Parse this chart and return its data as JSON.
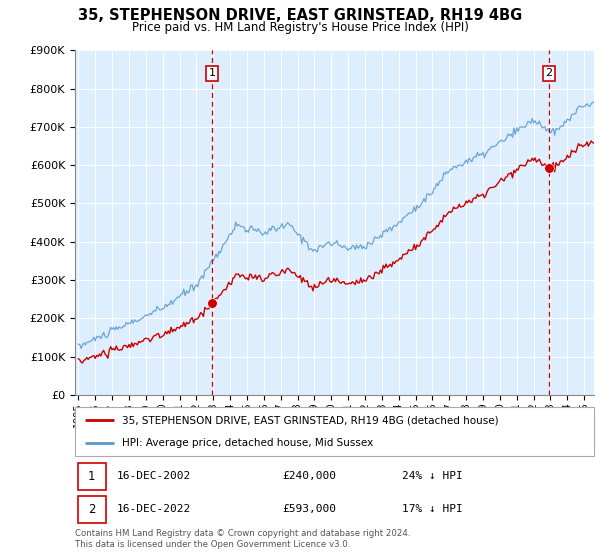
{
  "title": "35, STEPHENSON DRIVE, EAST GRINSTEAD, RH19 4BG",
  "subtitle": "Price paid vs. HM Land Registry's House Price Index (HPI)",
  "ylim": [
    0,
    900000
  ],
  "yticks": [
    0,
    100000,
    200000,
    300000,
    400000,
    500000,
    600000,
    700000,
    800000,
    900000
  ],
  "sale1_t": 2002.958,
  "sale2_t": 2022.958,
  "sale1_p": 240000,
  "sale2_p": 593000,
  "legend_house": "35, STEPHENSON DRIVE, EAST GRINSTEAD, RH19 4BG (detached house)",
  "legend_hpi": "HPI: Average price, detached house, Mid Sussex",
  "footnote": "Contains HM Land Registry data © Crown copyright and database right 2024.\nThis data is licensed under the Open Government Licence v3.0.",
  "house_color": "#cc0000",
  "hpi_color": "#5599cc",
  "dashed_color": "#cc0000",
  "bg_color": "#ffffff",
  "plot_bg_color": "#ddeeff",
  "grid_color": "#ffffff"
}
